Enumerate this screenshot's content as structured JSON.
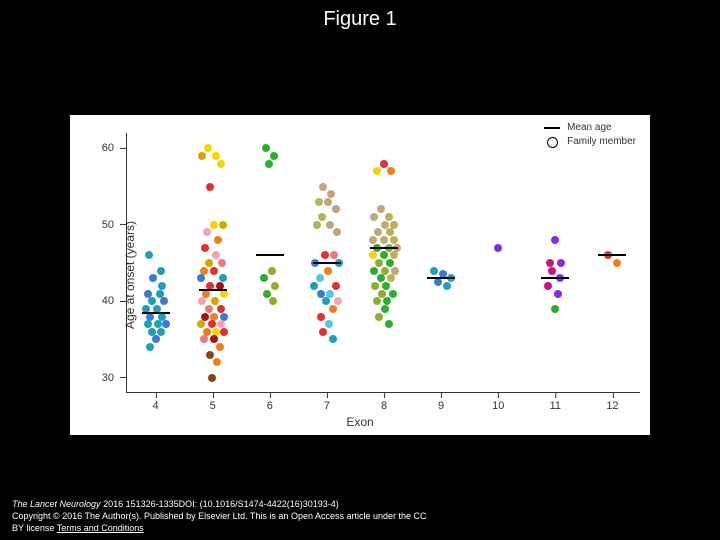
{
  "title": "Figure 1",
  "chart": {
    "type": "scatter",
    "background_color": "#ffffff",
    "ylabel": "Age at onset (years)",
    "xlabel": "Exon",
    "ylim": [
      28,
      62
    ],
    "yticks": [
      30,
      40,
      50,
      60
    ],
    "xcats": [
      4,
      5,
      6,
      7,
      8,
      9,
      10,
      11,
      12
    ],
    "legend": {
      "mean_label": "Mean age",
      "member_label": "Family member"
    },
    "palette": {
      "teal": "#1fa0b8",
      "blue": "#3a7bd5",
      "navy": "#2b4b9b",
      "yellow": "#f5d402",
      "gold": "#d9a400",
      "orange": "#ef7f1a",
      "red": "#e03131",
      "darkred": "#a31515",
      "pink": "#f5a3b0",
      "salmon": "#f07878",
      "green": "#2bb02b",
      "olive": "#8fae2e",
      "tan": "#c2a679",
      "khaki": "#b7b35a",
      "purple": "#8a2be2",
      "magenta": "#c9157a",
      "cyan": "#51c7e0",
      "brown": "#8b4513"
    },
    "means": {
      "4": 38.5,
      "5": 41.5,
      "6": 46,
      "7": 45,
      "8": 47,
      "9": 43,
      "11": 43,
      "12": 46
    },
    "points": [
      {
        "x": 4,
        "y": 46,
        "c": "teal",
        "dx": -0.12
      },
      {
        "x": 4,
        "y": 44,
        "c": "teal",
        "dx": 0.1
      },
      {
        "x": 4,
        "y": 43,
        "c": "blue",
        "dx": -0.05
      },
      {
        "x": 4,
        "y": 42,
        "c": "teal",
        "dx": 0.12
      },
      {
        "x": 4,
        "y": 41,
        "c": "blue",
        "dx": -0.14
      },
      {
        "x": 4,
        "y": 41,
        "c": "teal",
        "dx": 0.08
      },
      {
        "x": 4,
        "y": 40,
        "c": "teal",
        "dx": -0.06
      },
      {
        "x": 4,
        "y": 40,
        "c": "blue",
        "dx": 0.15
      },
      {
        "x": 4,
        "y": 39,
        "c": "teal",
        "dx": -0.16
      },
      {
        "x": 4,
        "y": 39,
        "c": "teal",
        "dx": 0.02
      },
      {
        "x": 4,
        "y": 38,
        "c": "teal",
        "dx": 0.12
      },
      {
        "x": 4,
        "y": 38,
        "c": "blue",
        "dx": -0.1
      },
      {
        "x": 4,
        "y": 37,
        "c": "teal",
        "dx": -0.14
      },
      {
        "x": 4,
        "y": 37,
        "c": "teal",
        "dx": 0.04
      },
      {
        "x": 4,
        "y": 37,
        "c": "blue",
        "dx": 0.18
      },
      {
        "x": 4,
        "y": 36,
        "c": "teal",
        "dx": -0.06
      },
      {
        "x": 4,
        "y": 36,
        "c": "teal",
        "dx": 0.1
      },
      {
        "x": 4,
        "y": 35,
        "c": "blue",
        "dx": 0.0
      },
      {
        "x": 4,
        "y": 34,
        "c": "teal",
        "dx": -0.1
      },
      {
        "x": 5,
        "y": 60,
        "c": "yellow",
        "dx": -0.08
      },
      {
        "x": 5,
        "y": 59,
        "c": "yellow",
        "dx": 0.06
      },
      {
        "x": 5,
        "y": 59,
        "c": "gold",
        "dx": -0.18
      },
      {
        "x": 5,
        "y": 58,
        "c": "yellow",
        "dx": 0.14
      },
      {
        "x": 5,
        "y": 55,
        "c": "red",
        "dx": -0.05
      },
      {
        "x": 5,
        "y": 50,
        "c": "yellow",
        "dx": 0.02
      },
      {
        "x": 5,
        "y": 50,
        "c": "gold",
        "dx": 0.18
      },
      {
        "x": 5,
        "y": 49,
        "c": "pink",
        "dx": -0.1
      },
      {
        "x": 5,
        "y": 48,
        "c": "orange",
        "dx": 0.1
      },
      {
        "x": 5,
        "y": 47,
        "c": "red",
        "dx": -0.14
      },
      {
        "x": 5,
        "y": 46,
        "c": "pink",
        "dx": 0.06
      },
      {
        "x": 5,
        "y": 45,
        "c": "gold",
        "dx": -0.06
      },
      {
        "x": 5,
        "y": 45,
        "c": "salmon",
        "dx": 0.16
      },
      {
        "x": 5,
        "y": 44,
        "c": "orange",
        "dx": -0.16
      },
      {
        "x": 5,
        "y": 44,
        "c": "red",
        "dx": 0.02
      },
      {
        "x": 5,
        "y": 43,
        "c": "teal",
        "dx": 0.18
      },
      {
        "x": 5,
        "y": 43,
        "c": "blue",
        "dx": -0.2
      },
      {
        "x": 5,
        "y": 42,
        "c": "red",
        "dx": -0.04
      },
      {
        "x": 5,
        "y": 42,
        "c": "darkred",
        "dx": 0.12
      },
      {
        "x": 5,
        "y": 41,
        "c": "yellow",
        "dx": 0.2
      },
      {
        "x": 5,
        "y": 41,
        "c": "orange",
        "dx": -0.12
      },
      {
        "x": 5,
        "y": 40,
        "c": "gold",
        "dx": 0.04
      },
      {
        "x": 5,
        "y": 40,
        "c": "pink",
        "dx": -0.18
      },
      {
        "x": 5,
        "y": 39,
        "c": "red",
        "dx": 0.14
      },
      {
        "x": 5,
        "y": 39,
        "c": "salmon",
        "dx": -0.06
      },
      {
        "x": 5,
        "y": 38,
        "c": "blue",
        "dx": 0.2
      },
      {
        "x": 5,
        "y": 38,
        "c": "darkred",
        "dx": -0.14
      },
      {
        "x": 5,
        "y": 38,
        "c": "orange",
        "dx": 0.02
      },
      {
        "x": 5,
        "y": 37,
        "c": "gold",
        "dx": -0.2
      },
      {
        "x": 5,
        "y": 37,
        "c": "red",
        "dx": -0.02
      },
      {
        "x": 5,
        "y": 37,
        "c": "pink",
        "dx": 0.14
      },
      {
        "x": 5,
        "y": 36,
        "c": "yellow",
        "dx": 0.06
      },
      {
        "x": 5,
        "y": 36,
        "c": "orange",
        "dx": -0.1
      },
      {
        "x": 5,
        "y": 36,
        "c": "red",
        "dx": 0.2
      },
      {
        "x": 5,
        "y": 35,
        "c": "salmon",
        "dx": -0.16
      },
      {
        "x": 5,
        "y": 35,
        "c": "darkred",
        "dx": 0.02
      },
      {
        "x": 5,
        "y": 34,
        "c": "orange",
        "dx": 0.12
      },
      {
        "x": 5,
        "y": 33,
        "c": "brown",
        "dx": -0.04
      },
      {
        "x": 5,
        "y": 32,
        "c": "orange",
        "dx": 0.08
      },
      {
        "x": 5,
        "y": 30,
        "c": "brown",
        "dx": -0.02
      },
      {
        "x": 6,
        "y": 60,
        "c": "green",
        "dx": -0.06
      },
      {
        "x": 6,
        "y": 59,
        "c": "green",
        "dx": 0.08
      },
      {
        "x": 6,
        "y": 58,
        "c": "green",
        "dx": -0.02
      },
      {
        "x": 6,
        "y": 44,
        "c": "olive",
        "dx": 0.04
      },
      {
        "x": 6,
        "y": 43,
        "c": "green",
        "dx": -0.1
      },
      {
        "x": 6,
        "y": 42,
        "c": "olive",
        "dx": 0.1
      },
      {
        "x": 6,
        "y": 41,
        "c": "green",
        "dx": -0.04
      },
      {
        "x": 6,
        "y": 40,
        "c": "olive",
        "dx": 0.06
      },
      {
        "x": 7,
        "y": 55,
        "c": "tan",
        "dx": -0.06
      },
      {
        "x": 7,
        "y": 54,
        "c": "tan",
        "dx": 0.08
      },
      {
        "x": 7,
        "y": 53,
        "c": "khaki",
        "dx": -0.14
      },
      {
        "x": 7,
        "y": 53,
        "c": "tan",
        "dx": 0.02
      },
      {
        "x": 7,
        "y": 52,
        "c": "tan",
        "dx": 0.16
      },
      {
        "x": 7,
        "y": 51,
        "c": "khaki",
        "dx": -0.08
      },
      {
        "x": 7,
        "y": 50,
        "c": "tan",
        "dx": 0.06
      },
      {
        "x": 7,
        "y": 50,
        "c": "khaki",
        "dx": -0.18
      },
      {
        "x": 7,
        "y": 49,
        "c": "tan",
        "dx": 0.18
      },
      {
        "x": 7,
        "y": 46,
        "c": "red",
        "dx": -0.04
      },
      {
        "x": 7,
        "y": 46,
        "c": "salmon",
        "dx": 0.12
      },
      {
        "x": 7,
        "y": 45,
        "c": "teal",
        "dx": 0.22
      },
      {
        "x": 7,
        "y": 45,
        "c": "blue",
        "dx": -0.2
      },
      {
        "x": 7,
        "y": 44,
        "c": "orange",
        "dx": 0.02
      },
      {
        "x": 7,
        "y": 43,
        "c": "cyan",
        "dx": -0.12
      },
      {
        "x": 7,
        "y": 42,
        "c": "red",
        "dx": 0.16
      },
      {
        "x": 7,
        "y": 42,
        "c": "teal",
        "dx": -0.22
      },
      {
        "x": 7,
        "y": 41,
        "c": "cyan",
        "dx": 0.06
      },
      {
        "x": 7,
        "y": 41,
        "c": "blue",
        "dx": -0.1
      },
      {
        "x": 7,
        "y": 40,
        "c": "pink",
        "dx": 0.2
      },
      {
        "x": 7,
        "y": 40,
        "c": "teal",
        "dx": -0.02
      },
      {
        "x": 7,
        "y": 39,
        "c": "orange",
        "dx": 0.1
      },
      {
        "x": 7,
        "y": 38,
        "c": "red",
        "dx": -0.1
      },
      {
        "x": 7,
        "y": 37,
        "c": "cyan",
        "dx": 0.04
      },
      {
        "x": 7,
        "y": 36,
        "c": "red",
        "dx": -0.06
      },
      {
        "x": 7,
        "y": 35,
        "c": "teal",
        "dx": 0.1
      },
      {
        "x": 8,
        "y": 58,
        "c": "red",
        "dx": 0.0
      },
      {
        "x": 8,
        "y": 57,
        "c": "orange",
        "dx": 0.12
      },
      {
        "x": 8,
        "y": 57,
        "c": "yellow",
        "dx": -0.12
      },
      {
        "x": 8,
        "y": 52,
        "c": "tan",
        "dx": -0.06
      },
      {
        "x": 8,
        "y": 51,
        "c": "khaki",
        "dx": 0.08
      },
      {
        "x": 8,
        "y": 51,
        "c": "tan",
        "dx": -0.18
      },
      {
        "x": 8,
        "y": 50,
        "c": "tan",
        "dx": 0.02
      },
      {
        "x": 8,
        "y": 50,
        "c": "khaki",
        "dx": 0.18
      },
      {
        "x": 8,
        "y": 49,
        "c": "tan",
        "dx": -0.1
      },
      {
        "x": 8,
        "y": 49,
        "c": "khaki",
        "dx": 0.1
      },
      {
        "x": 8,
        "y": 48,
        "c": "tan",
        "dx": -0.2
      },
      {
        "x": 8,
        "y": 48,
        "c": "tan",
        "dx": 0.0
      },
      {
        "x": 8,
        "y": 48,
        "c": "khaki",
        "dx": 0.18
      },
      {
        "x": 8,
        "y": 47,
        "c": "green",
        "dx": -0.12
      },
      {
        "x": 8,
        "y": 47,
        "c": "olive",
        "dx": 0.08
      },
      {
        "x": 8,
        "y": 47,
        "c": "tan",
        "dx": 0.22
      },
      {
        "x": 8,
        "y": 46,
        "c": "yellow",
        "dx": -0.2
      },
      {
        "x": 8,
        "y": 46,
        "c": "green",
        "dx": 0.0
      },
      {
        "x": 8,
        "y": 46,
        "c": "khaki",
        "dx": 0.18
      },
      {
        "x": 8,
        "y": 45,
        "c": "olive",
        "dx": -0.08
      },
      {
        "x": 8,
        "y": 45,
        "c": "green",
        "dx": 0.1
      },
      {
        "x": 8,
        "y": 44,
        "c": "green",
        "dx": -0.18
      },
      {
        "x": 8,
        "y": 44,
        "c": "olive",
        "dx": 0.02
      },
      {
        "x": 8,
        "y": 44,
        "c": "tan",
        "dx": 0.2
      },
      {
        "x": 8,
        "y": 43,
        "c": "green",
        "dx": -0.06
      },
      {
        "x": 8,
        "y": 43,
        "c": "khaki",
        "dx": 0.12
      },
      {
        "x": 8,
        "y": 42,
        "c": "olive",
        "dx": -0.16
      },
      {
        "x": 8,
        "y": 42,
        "c": "green",
        "dx": 0.04
      },
      {
        "x": 8,
        "y": 41,
        "c": "green",
        "dx": 0.16
      },
      {
        "x": 8,
        "y": 41,
        "c": "olive",
        "dx": -0.04
      },
      {
        "x": 8,
        "y": 40,
        "c": "green",
        "dx": 0.06
      },
      {
        "x": 8,
        "y": 40,
        "c": "olive",
        "dx": -0.12
      },
      {
        "x": 8,
        "y": 39,
        "c": "green",
        "dx": 0.02
      },
      {
        "x": 8,
        "y": 38,
        "c": "olive",
        "dx": -0.08
      },
      {
        "x": 8,
        "y": 37,
        "c": "green",
        "dx": 0.08
      },
      {
        "x": 9,
        "y": 44,
        "c": "teal",
        "dx": -0.12
      },
      {
        "x": 9,
        "y": 43.5,
        "c": "blue",
        "dx": 0.04
      },
      {
        "x": 9,
        "y": 43,
        "c": "teal",
        "dx": 0.18
      },
      {
        "x": 9,
        "y": 42.5,
        "c": "blue",
        "dx": -0.06
      },
      {
        "x": 9,
        "y": 42,
        "c": "teal",
        "dx": 0.1
      },
      {
        "x": 10,
        "y": 47,
        "c": "purple",
        "dx": 0.0
      },
      {
        "x": 11,
        "y": 48,
        "c": "purple",
        "dx": 0.0
      },
      {
        "x": 11,
        "y": 45,
        "c": "magenta",
        "dx": -0.1
      },
      {
        "x": 11,
        "y": 45,
        "c": "purple",
        "dx": 0.1
      },
      {
        "x": 11,
        "y": 44,
        "c": "magenta",
        "dx": -0.06
      },
      {
        "x": 11,
        "y": 43,
        "c": "purple",
        "dx": 0.08
      },
      {
        "x": 11,
        "y": 42,
        "c": "magenta",
        "dx": -0.12
      },
      {
        "x": 11,
        "y": 41,
        "c": "purple",
        "dx": 0.04
      },
      {
        "x": 11,
        "y": 39,
        "c": "green",
        "dx": 0.0
      },
      {
        "x": 12,
        "y": 46,
        "c": "red",
        "dx": -0.08
      },
      {
        "x": 12,
        "y": 45,
        "c": "orange",
        "dx": 0.08
      }
    ]
  },
  "footer": {
    "journal": "The Lancet Neurology",
    "citation": " 2016 151326-1335DOI: (10.1016/S1474-4422(16)30193-4)",
    "copyright_a": "Copyright © 2016 The Author(s). Published by Elsevier Ltd. This is an Open Access article under the CC ",
    "copyright_b": "BY license ",
    "terms": "Terms and Conditions"
  }
}
